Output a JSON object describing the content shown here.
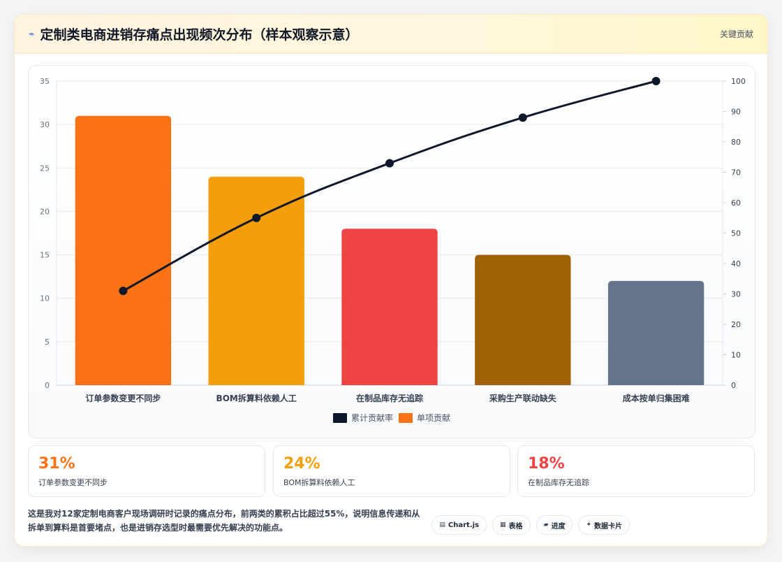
{
  "header": {
    "icon": "lightning-icon",
    "title": "定制类电商进销存痛点出现频次分布（样本观察示意）",
    "right_label": "关键贡献"
  },
  "chart_data": {
    "type": "bar",
    "categories": [
      "订单参数变更不同步",
      "BOM拆算料依赖人工",
      "在制品库存无追踪",
      "采购生产联动缺失",
      "成本按单归集困难"
    ],
    "series": [
      {
        "name": "单项贡献",
        "type": "bar",
        "axis": "left",
        "values": [
          31,
          24,
          18,
          15,
          12
        ],
        "colors": [
          "#f97316",
          "#f59e0b",
          "#ef4444",
          "#a16207",
          "#64748b"
        ]
      },
      {
        "name": "累计贡献率",
        "type": "line",
        "axis": "right",
        "values": [
          31,
          55,
          73,
          88,
          100
        ],
        "color": "#0f172a"
      }
    ],
    "ylim": [
      0,
      35
    ],
    "yticks": [
      0,
      5,
      10,
      15,
      20,
      25,
      30,
      35
    ],
    "y2lim": [
      0,
      100
    ],
    "y2ticks": [
      0,
      10,
      20,
      30,
      40,
      50,
      60,
      70,
      80,
      90,
      100
    ],
    "grid": true,
    "legend": [
      {
        "label": "累计贡献率",
        "color": "#0f172a"
      },
      {
        "label": "单项贡献",
        "color": "#f97316"
      }
    ],
    "legend_position": "bottom"
  },
  "stats": [
    {
      "value": "31%",
      "label": "订单参数变更不同步",
      "color": "#f97316"
    },
    {
      "value": "24%",
      "label": "BOM拆算料依赖人工",
      "color": "#f59e0b"
    },
    {
      "value": "18%",
      "label": "在制品库存无追踪",
      "color": "#ef4444"
    }
  ],
  "footer": {
    "note": "这是我对12家定制电商客户现场调研时记录的痛点分布，前两类的累积占比超过55%，说明信息传递和从拆单到算料是首要堵点，也是进销存选型时最需要优先解决的功能点。",
    "tags": [
      {
        "icon": "chart-icon",
        "glyph": "▤",
        "label": "Chart.js"
      },
      {
        "icon": "table-icon",
        "glyph": "▦",
        "label": "表格"
      },
      {
        "icon": "progress-icon",
        "glyph": "▰",
        "label": "进度"
      },
      {
        "icon": "sparkle-icon",
        "glyph": "✦",
        "label": "数据卡片"
      }
    ]
  }
}
